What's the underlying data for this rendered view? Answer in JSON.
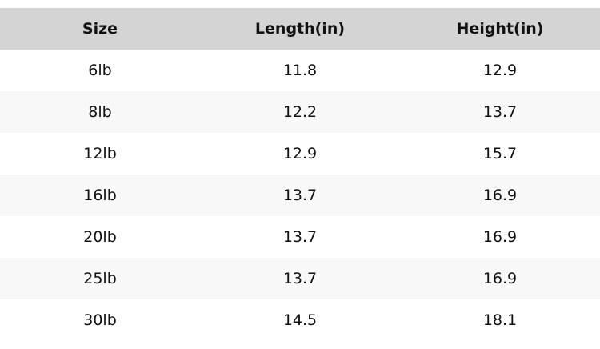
{
  "table": {
    "headers": [
      "Size",
      "Length(in)",
      "Height(in)"
    ],
    "rows": [
      [
        "6lb",
        "11.8",
        "12.9"
      ],
      [
        "8lb",
        "12.2",
        "13.7"
      ],
      [
        "12lb",
        "12.9",
        "15.7"
      ],
      [
        "16lb",
        "13.7",
        "16.9"
      ],
      [
        "20lb",
        "13.7",
        "16.9"
      ],
      [
        "25lb",
        "13.7",
        "16.9"
      ],
      [
        "30lb",
        "14.5",
        "18.1"
      ]
    ]
  }
}
